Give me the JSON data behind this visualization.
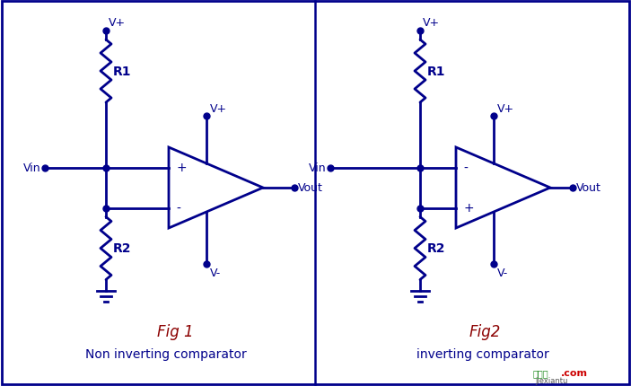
{
  "bg_color": "#ffffff",
  "border_color": "#00008B",
  "line_color": "#00008B",
  "text_color": "#00008B",
  "fig_label_color": "#8B0000",
  "fig1_label": "Fig 1",
  "fig1_caption": "Non inverting comparator",
  "fig2_label": "Fig2",
  "fig2_caption": "inverting comparator",
  "wm_text": "挪线图",
  "wm_com": ".com",
  "wm_sub": "jiexiantu"
}
